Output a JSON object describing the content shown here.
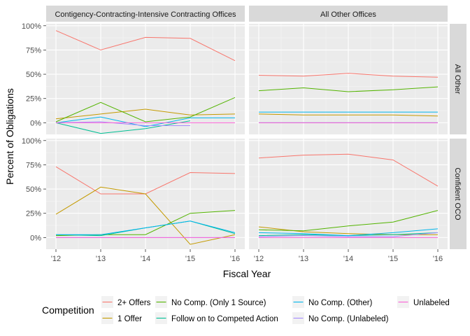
{
  "chart_data": {
    "type": "line",
    "facet_columns": [
      "Contigency-Contracting-Intensive Contracting Offices",
      "All Other Offices"
    ],
    "facet_rows": [
      "All Other",
      "Confident OCO"
    ],
    "xlabel": "Fiscal Year",
    "ylabel": "Percent of Obligations",
    "x": [
      "'12",
      "'13",
      "'14",
      "'15",
      "'16"
    ],
    "ylim": [
      -0.12,
      1.02
    ],
    "yticks": [
      0,
      0.25,
      0.5,
      0.75,
      1.0
    ],
    "ytick_labels": [
      "0%",
      "25%",
      "50%",
      "75%",
      "100%"
    ],
    "legend_title": "Competition",
    "legend_position": "bottom",
    "series": [
      {
        "name": "2+ Offers",
        "color": "#F8766D"
      },
      {
        "name": "1 Offer",
        "color": "#C49A00"
      },
      {
        "name": "No Comp. (Only 1 Source)",
        "color": "#53B400"
      },
      {
        "name": "Follow on to Competed Action",
        "color": "#00C094"
      },
      {
        "name": "No Comp. (Other)",
        "color": "#00B6EB"
      },
      {
        "name": "No Comp. (Unlabeled)",
        "color": "#A58AFF"
      },
      {
        "name": "Unlabeled",
        "color": "#FB61D7"
      }
    ],
    "panels": [
      {
        "row": 0,
        "col": 0,
        "lines": [
          {
            "series": 0,
            "values": [
              0.95,
              0.75,
              0.88,
              0.87,
              0.64
            ]
          },
          {
            "series": 1,
            "values": [
              0.04,
              0.09,
              0.14,
              0.08,
              0.09
            ]
          },
          {
            "series": 2,
            "values": [
              0.01,
              0.21,
              0.01,
              0.06,
              0.26
            ]
          },
          {
            "series": 3,
            "values": [
              0.0,
              -0.11,
              -0.06,
              0.02,
              null
            ]
          },
          {
            "series": 4,
            "values": [
              0.0,
              0.06,
              -0.04,
              0.05,
              0.05
            ]
          },
          {
            "series": 5,
            "values": [
              0.0,
              0.01,
              -0.03,
              -0.03,
              null
            ]
          },
          {
            "series": 6,
            "values": [
              0.0,
              0.0,
              0.0,
              0.0,
              0.0
            ]
          }
        ]
      },
      {
        "row": 0,
        "col": 1,
        "lines": [
          {
            "series": 0,
            "values": [
              0.49,
              0.48,
              0.51,
              0.48,
              0.47
            ]
          },
          {
            "series": 1,
            "values": [
              0.09,
              0.08,
              0.08,
              0.08,
              0.07
            ]
          },
          {
            "series": 2,
            "values": [
              0.33,
              0.36,
              0.32,
              0.34,
              0.37
            ]
          },
          {
            "series": 3,
            "values": [
              0.0,
              0.0,
              0.0,
              0.0,
              0.0
            ]
          },
          {
            "series": 4,
            "values": [
              0.11,
              0.11,
              0.11,
              0.11,
              0.11
            ]
          },
          {
            "series": 5,
            "values": [
              0.0,
              0.0,
              0.0,
              0.0,
              0.0
            ]
          },
          {
            "series": 6,
            "values": [
              0.0,
              0.0,
              0.0,
              0.0,
              0.0
            ]
          }
        ]
      },
      {
        "row": 1,
        "col": 0,
        "lines": [
          {
            "series": 0,
            "values": [
              0.73,
              0.45,
              0.45,
              0.67,
              0.66
            ]
          },
          {
            "series": 1,
            "values": [
              0.24,
              0.52,
              0.45,
              -0.07,
              0.03
            ]
          },
          {
            "series": 2,
            "values": [
              0.02,
              0.03,
              0.03,
              0.25,
              0.28
            ]
          },
          {
            "series": 3,
            "values": [
              0.03,
              0.02,
              0.1,
              0.17,
              0.04
            ]
          },
          {
            "series": 4,
            "values": [
              0.03,
              0.03,
              0.1,
              0.17,
              0.05
            ]
          },
          {
            "series": 5,
            "values": [
              0.0,
              0.0,
              0.0,
              0.0,
              0.0
            ]
          },
          {
            "series": 6,
            "values": [
              0.0,
              0.0,
              0.0,
              0.0,
              0.0
            ]
          }
        ]
      },
      {
        "row": 1,
        "col": 1,
        "lines": [
          {
            "series": 0,
            "values": [
              0.82,
              0.85,
              0.86,
              0.8,
              0.53
            ]
          },
          {
            "series": 1,
            "values": [
              0.11,
              0.06,
              0.04,
              0.03,
              0.03
            ]
          },
          {
            "series": 2,
            "values": [
              0.08,
              0.07,
              0.12,
              0.16,
              0.28
            ]
          },
          {
            "series": 3,
            "values": [
              0.02,
              0.03,
              0.02,
              0.03,
              0.05
            ]
          },
          {
            "series": 4,
            "values": [
              0.05,
              0.04,
              0.02,
              0.05,
              0.09
            ]
          },
          {
            "series": 5,
            "values": [
              0.01,
              0.02,
              0.01,
              0.01,
              0.05
            ]
          },
          {
            "series": 6,
            "values": [
              0.0,
              0.0,
              0.0,
              0.0,
              0.0
            ]
          }
        ]
      }
    ]
  }
}
